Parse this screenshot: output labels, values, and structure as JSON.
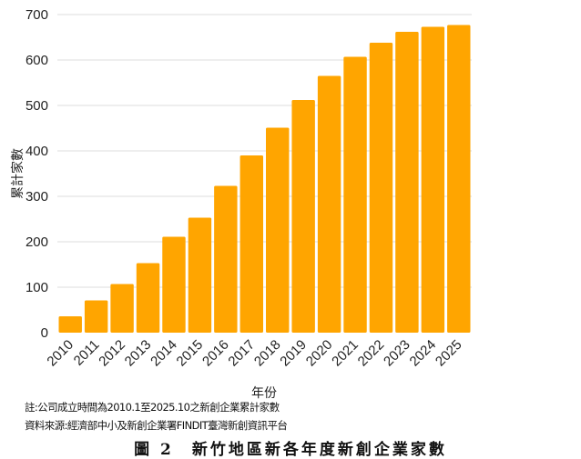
{
  "chart_data": {
    "type": "bar",
    "categories": [
      "2010",
      "2011",
      "2012",
      "2013",
      "2014",
      "2015",
      "2016",
      "2017",
      "2018",
      "2019",
      "2020",
      "2021",
      "2022",
      "2023",
      "2024",
      "2025"
    ],
    "values": [
      36,
      71,
      107,
      153,
      211,
      253,
      323,
      390,
      451,
      512,
      565,
      607,
      638,
      662,
      673,
      677
    ],
    "title": "",
    "xlabel": "年份",
    "ylabel": "累計家數",
    "ylim": [
      0,
      700
    ],
    "yticks": [
      0,
      100,
      200,
      300,
      400,
      500,
      600,
      700
    ],
    "grid": true,
    "bar_color": "#FFA500"
  },
  "notes": {
    "note": "註:公司成立時間為2010.1至2025.10之新創企業累計家數",
    "source": "資料來源:經濟部中小及新創企業署FINDIT臺灣新創資訊平台"
  },
  "caption": "圖 2　新竹地區新各年度新創企業家數"
}
